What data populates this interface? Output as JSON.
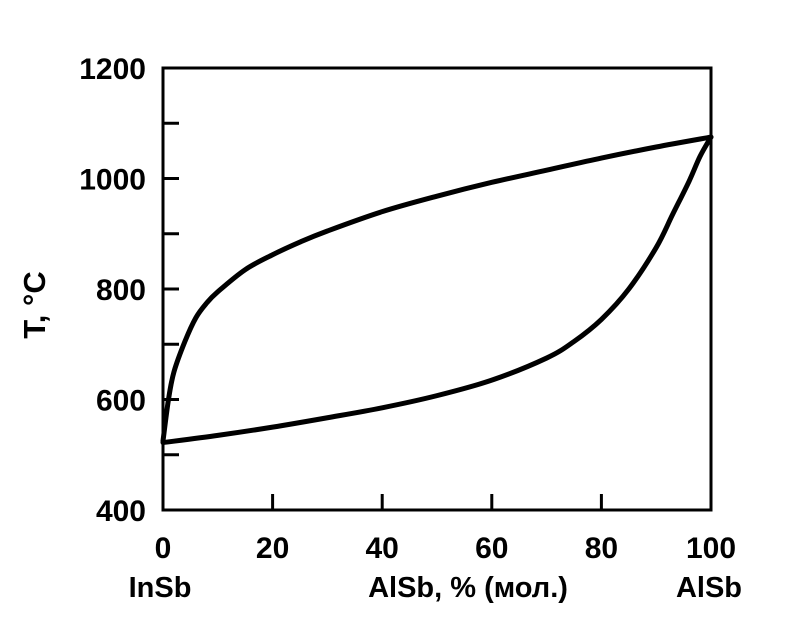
{
  "chart_data": {
    "type": "line",
    "title": "",
    "xlabel": "AlSb, % (мол.)",
    "xlabel_left": "InSb",
    "xlabel_right": "AlSb",
    "ylabel": "T, °C",
    "xlim": [
      0,
      100
    ],
    "ylim": [
      400,
      1200
    ],
    "x_ticks": [
      0,
      20,
      40,
      60,
      80,
      100
    ],
    "y_ticks": [
      400,
      600,
      800,
      1000,
      1200
    ],
    "x_tick_labels": [
      "0",
      "20",
      "40",
      "60",
      "80",
      "100"
    ],
    "y_tick_labels": [
      "400",
      "600",
      "800",
      "1000",
      "1200"
    ],
    "grid": false,
    "series": [
      {
        "x": [
          0,
          1,
          2,
          4,
          6,
          8,
          10,
          15,
          20,
          25,
          30,
          40,
          50,
          60,
          70,
          80,
          90,
          100
        ],
        "y": [
          525,
          600,
          650,
          705,
          748,
          775,
          795,
          835,
          862,
          885,
          905,
          940,
          968,
          993,
          1015,
          1037,
          1057,
          1075
        ]
      },
      {
        "x": [
          0,
          10,
          20,
          30,
          40,
          50,
          60,
          70,
          75,
          80,
          85,
          90,
          93,
          96,
          98,
          100
        ],
        "y": [
          522,
          535,
          550,
          567,
          585,
          607,
          635,
          675,
          705,
          745,
          800,
          875,
          935,
          995,
          1040,
          1075
        ]
      }
    ],
    "colors": {
      "line": "#000000",
      "axis": "#000000",
      "background": "#ffffff"
    }
  }
}
